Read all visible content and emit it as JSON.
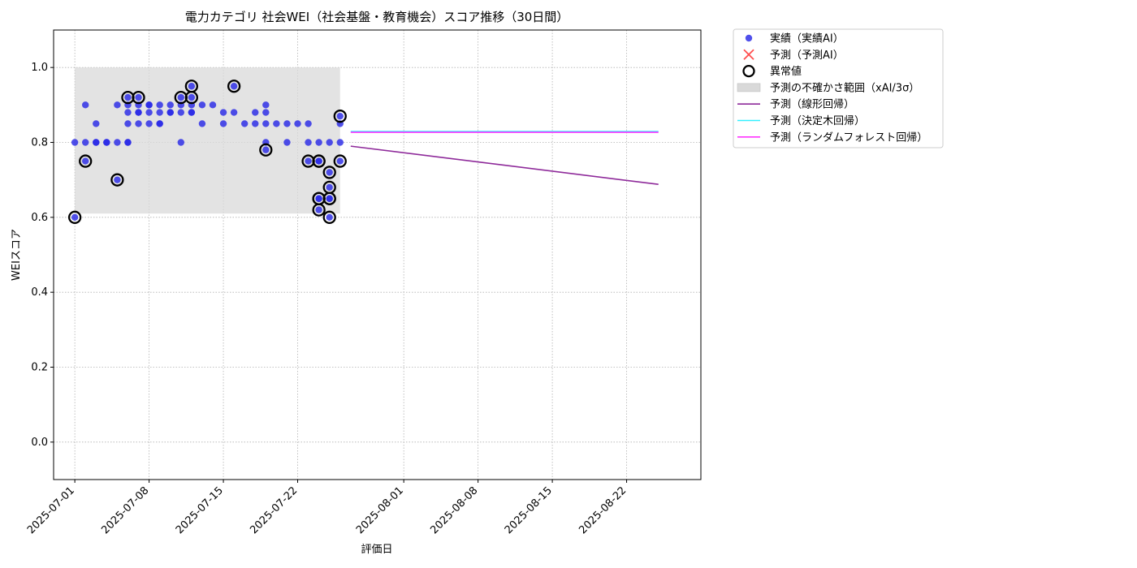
{
  "chart_data": {
    "type": "scatter",
    "title": "電力カテゴリ 社会WEI（社会基盤・教育機会）スコア推移（30日間）",
    "xlabel": "評価日",
    "ylabel": "WEIスコア",
    "xlim": [
      "2025-06-29",
      "2025-08-29"
    ],
    "ylim": [
      -0.1,
      1.1
    ],
    "yticks": [
      0.0,
      0.2,
      0.4,
      0.6,
      0.8,
      1.0
    ],
    "ytick_labels": [
      "0.0",
      "0.2",
      "0.4",
      "0.6",
      "0.8",
      "1.0"
    ],
    "xticks": [
      "2025-07-01",
      "2025-07-08",
      "2025-07-15",
      "2025-07-22",
      "2025-08-01",
      "2025-08-08",
      "2025-08-15",
      "2025-08-22"
    ],
    "grid": true,
    "legend_position": "outside-top-right",
    "colors": {
      "actual": "#2a2ae6",
      "predicted": "#ff4d4d",
      "anomaly_ring": "#000000",
      "band": "#d9d9d9",
      "linear": "#8e2a9a",
      "tree": "#33f0ff",
      "forest": "#ff33ff"
    },
    "uncertainty_band": {
      "x": [
        "2025-07-01",
        "2025-07-26"
      ],
      "y": [
        0.61,
        1.0
      ]
    },
    "series": [
      {
        "name": "実績（実績AI）",
        "kind": "scatter",
        "points": [
          [
            "2025-07-01",
            0.8
          ],
          [
            "2025-07-01",
            0.6
          ],
          [
            "2025-07-02",
            0.9
          ],
          [
            "2025-07-02",
            0.8
          ],
          [
            "2025-07-02",
            0.75
          ],
          [
            "2025-07-03",
            0.8
          ],
          [
            "2025-07-03",
            0.85
          ],
          [
            "2025-07-03",
            0.8
          ],
          [
            "2025-07-04",
            0.8
          ],
          [
            "2025-07-04",
            0.8
          ],
          [
            "2025-07-05",
            0.7
          ],
          [
            "2025-07-05",
            0.9
          ],
          [
            "2025-07-05",
            0.8
          ],
          [
            "2025-07-06",
            0.9
          ],
          [
            "2025-07-06",
            0.8
          ],
          [
            "2025-07-06",
            0.8
          ],
          [
            "2025-07-06",
            0.92
          ],
          [
            "2025-07-06",
            0.88
          ],
          [
            "2025-07-06",
            0.85
          ],
          [
            "2025-07-07",
            0.88
          ],
          [
            "2025-07-07",
            0.9
          ],
          [
            "2025-07-07",
            0.92
          ],
          [
            "2025-07-07",
            0.88
          ],
          [
            "2025-07-07",
            0.85
          ],
          [
            "2025-07-08",
            0.85
          ],
          [
            "2025-07-08",
            0.9
          ],
          [
            "2025-07-08",
            0.9
          ],
          [
            "2025-07-08",
            0.88
          ],
          [
            "2025-07-09",
            0.85
          ],
          [
            "2025-07-09",
            0.88
          ],
          [
            "2025-07-09",
            0.9
          ],
          [
            "2025-07-09",
            0.85
          ],
          [
            "2025-07-10",
            0.88
          ],
          [
            "2025-07-10",
            0.88
          ],
          [
            "2025-07-10",
            0.9
          ],
          [
            "2025-07-11",
            0.9
          ],
          [
            "2025-07-11",
            0.92
          ],
          [
            "2025-07-11",
            0.88
          ],
          [
            "2025-07-11",
            0.8
          ],
          [
            "2025-07-12",
            0.88
          ],
          [
            "2025-07-12",
            0.9
          ],
          [
            "2025-07-12",
            0.92
          ],
          [
            "2025-07-12",
            0.95
          ],
          [
            "2025-07-12",
            0.88
          ],
          [
            "2025-07-13",
            0.9
          ],
          [
            "2025-07-13",
            0.85
          ],
          [
            "2025-07-14",
            0.9
          ],
          [
            "2025-07-15",
            0.88
          ],
          [
            "2025-07-15",
            0.85
          ],
          [
            "2025-07-16",
            0.95
          ],
          [
            "2025-07-16",
            0.88
          ],
          [
            "2025-07-17",
            0.85
          ],
          [
            "2025-07-18",
            0.88
          ],
          [
            "2025-07-18",
            0.85
          ],
          [
            "2025-07-19",
            0.9
          ],
          [
            "2025-07-19",
            0.88
          ],
          [
            "2025-07-19",
            0.85
          ],
          [
            "2025-07-19",
            0.78
          ],
          [
            "2025-07-19",
            0.8
          ],
          [
            "2025-07-20",
            0.85
          ],
          [
            "2025-07-21",
            0.85
          ],
          [
            "2025-07-21",
            0.8
          ],
          [
            "2025-07-22",
            0.85
          ],
          [
            "2025-07-23",
            0.85
          ],
          [
            "2025-07-23",
            0.8
          ],
          [
            "2025-07-23",
            0.75
          ],
          [
            "2025-07-24",
            0.8
          ],
          [
            "2025-07-24",
            0.75
          ],
          [
            "2025-07-24",
            0.65
          ],
          [
            "2025-07-24",
            0.62
          ],
          [
            "2025-07-24",
            0.65
          ],
          [
            "2025-07-24",
            0.75
          ],
          [
            "2025-07-25",
            0.8
          ],
          [
            "2025-07-25",
            0.65
          ],
          [
            "2025-07-25",
            0.72
          ],
          [
            "2025-07-25",
            0.68
          ],
          [
            "2025-07-25",
            0.65
          ],
          [
            "2025-07-25",
            0.6
          ],
          [
            "2025-07-26",
            0.87
          ],
          [
            "2025-07-26",
            0.85
          ],
          [
            "2025-07-26",
            0.8
          ],
          [
            "2025-07-26",
            0.75
          ]
        ]
      },
      {
        "name": "予測（予測AI）",
        "kind": "scatter-x",
        "points": []
      },
      {
        "name": "異常値",
        "kind": "ring",
        "points": [
          [
            "2025-07-01",
            0.6
          ],
          [
            "2025-07-02",
            0.75
          ],
          [
            "2025-07-05",
            0.7
          ],
          [
            "2025-07-06",
            0.92
          ],
          [
            "2025-07-07",
            0.92
          ],
          [
            "2025-07-11",
            0.92
          ],
          [
            "2025-07-12",
            0.95
          ],
          [
            "2025-07-12",
            0.92
          ],
          [
            "2025-07-16",
            0.95
          ],
          [
            "2025-07-19",
            0.78
          ],
          [
            "2025-07-23",
            0.75
          ],
          [
            "2025-07-24",
            0.75
          ],
          [
            "2025-07-24",
            0.65
          ],
          [
            "2025-07-24",
            0.62
          ],
          [
            "2025-07-24",
            0.65
          ],
          [
            "2025-07-24",
            0.75
          ],
          [
            "2025-07-25",
            0.65
          ],
          [
            "2025-07-25",
            0.72
          ],
          [
            "2025-07-25",
            0.68
          ],
          [
            "2025-07-25",
            0.65
          ],
          [
            "2025-07-25",
            0.6
          ],
          [
            "2025-07-26",
            0.87
          ],
          [
            "2025-07-26",
            0.75
          ]
        ]
      },
      {
        "name": "予測の不確かさ範囲（xAI/3σ）",
        "kind": "band"
      },
      {
        "name": "予測（線形回帰）",
        "kind": "line",
        "x": [
          "2025-07-27",
          "2025-08-25"
        ],
        "y": [
          0.79,
          0.688
        ]
      },
      {
        "name": "予測（決定木回帰）",
        "kind": "line",
        "x": [
          "2025-07-27",
          "2025-08-25"
        ],
        "y": [
          0.829,
          0.829
        ]
      },
      {
        "name": "予測（ランダムフォレスト回帰）",
        "kind": "line",
        "x": [
          "2025-07-27",
          "2025-08-25"
        ],
        "y": [
          0.827,
          0.827
        ]
      }
    ]
  }
}
